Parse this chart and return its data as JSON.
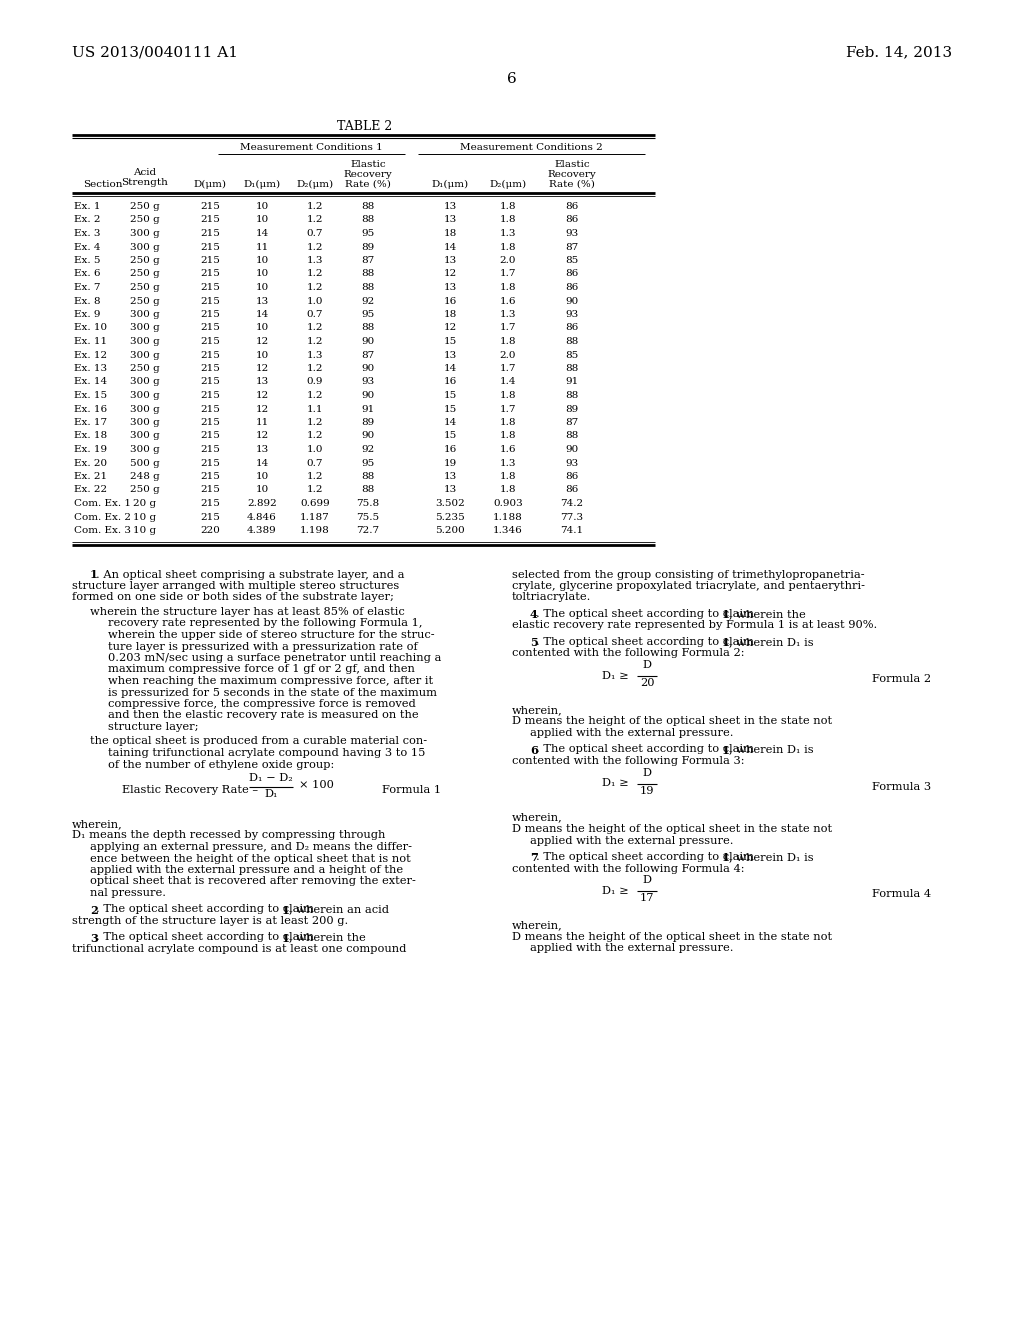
{
  "patent_number": "US 2013/0040111 A1",
  "date": "Feb. 14, 2013",
  "page_number": "6",
  "table_title": "TABLE 2",
  "table_data": [
    [
      "Ex. 1",
      "250 g",
      "215",
      "10",
      "1.2",
      "88",
      "13",
      "1.8",
      "86"
    ],
    [
      "Ex. 2",
      "250 g",
      "215",
      "10",
      "1.2",
      "88",
      "13",
      "1.8",
      "86"
    ],
    [
      "Ex. 3",
      "300 g",
      "215",
      "14",
      "0.7",
      "95",
      "18",
      "1.3",
      "93"
    ],
    [
      "Ex. 4",
      "300 g",
      "215",
      "11",
      "1.2",
      "89",
      "14",
      "1.8",
      "87"
    ],
    [
      "Ex. 5",
      "250 g",
      "215",
      "10",
      "1.3",
      "87",
      "13",
      "2.0",
      "85"
    ],
    [
      "Ex. 6",
      "250 g",
      "215",
      "10",
      "1.2",
      "88",
      "12",
      "1.7",
      "86"
    ],
    [
      "Ex. 7",
      "250 g",
      "215",
      "10",
      "1.2",
      "88",
      "13",
      "1.8",
      "86"
    ],
    [
      "Ex. 8",
      "250 g",
      "215",
      "13",
      "1.0",
      "92",
      "16",
      "1.6",
      "90"
    ],
    [
      "Ex. 9",
      "300 g",
      "215",
      "14",
      "0.7",
      "95",
      "18",
      "1.3",
      "93"
    ],
    [
      "Ex. 10",
      "300 g",
      "215",
      "10",
      "1.2",
      "88",
      "12",
      "1.7",
      "86"
    ],
    [
      "Ex. 11",
      "300 g",
      "215",
      "12",
      "1.2",
      "90",
      "15",
      "1.8",
      "88"
    ],
    [
      "Ex. 12",
      "300 g",
      "215",
      "10",
      "1.3",
      "87",
      "13",
      "2.0",
      "85"
    ],
    [
      "Ex. 13",
      "250 g",
      "215",
      "12",
      "1.2",
      "90",
      "14",
      "1.7",
      "88"
    ],
    [
      "Ex. 14",
      "300 g",
      "215",
      "13",
      "0.9",
      "93",
      "16",
      "1.4",
      "91"
    ],
    [
      "Ex. 15",
      "300 g",
      "215",
      "12",
      "1.2",
      "90",
      "15",
      "1.8",
      "88"
    ],
    [
      "Ex. 16",
      "300 g",
      "215",
      "12",
      "1.1",
      "91",
      "15",
      "1.7",
      "89"
    ],
    [
      "Ex. 17",
      "300 g",
      "215",
      "11",
      "1.2",
      "89",
      "14",
      "1.8",
      "87"
    ],
    [
      "Ex. 18",
      "300 g",
      "215",
      "12",
      "1.2",
      "90",
      "15",
      "1.8",
      "88"
    ],
    [
      "Ex. 19",
      "300 g",
      "215",
      "13",
      "1.0",
      "92",
      "16",
      "1.6",
      "90"
    ],
    [
      "Ex. 20",
      "500 g",
      "215",
      "14",
      "0.7",
      "95",
      "19",
      "1.3",
      "93"
    ],
    [
      "Ex. 21",
      "248 g",
      "215",
      "10",
      "1.2",
      "88",
      "13",
      "1.8",
      "86"
    ],
    [
      "Ex. 22",
      "250 g",
      "215",
      "10",
      "1.2",
      "88",
      "13",
      "1.8",
      "86"
    ],
    [
      "Com. Ex. 1",
      "20 g",
      "215",
      "2.892",
      "0.699",
      "75.8",
      "3.502",
      "0.903",
      "74.2"
    ],
    [
      "Com. Ex. 2",
      "10 g",
      "215",
      "4.846",
      "1.187",
      "75.5",
      "5.235",
      "1.188",
      "77.3"
    ],
    [
      "Com. Ex. 3",
      "10 g",
      "220",
      "4.389",
      "1.198",
      "72.7",
      "5.200",
      "1.346",
      "74.1"
    ]
  ],
  "background_color": "#ffffff",
  "text_color": "#000000"
}
